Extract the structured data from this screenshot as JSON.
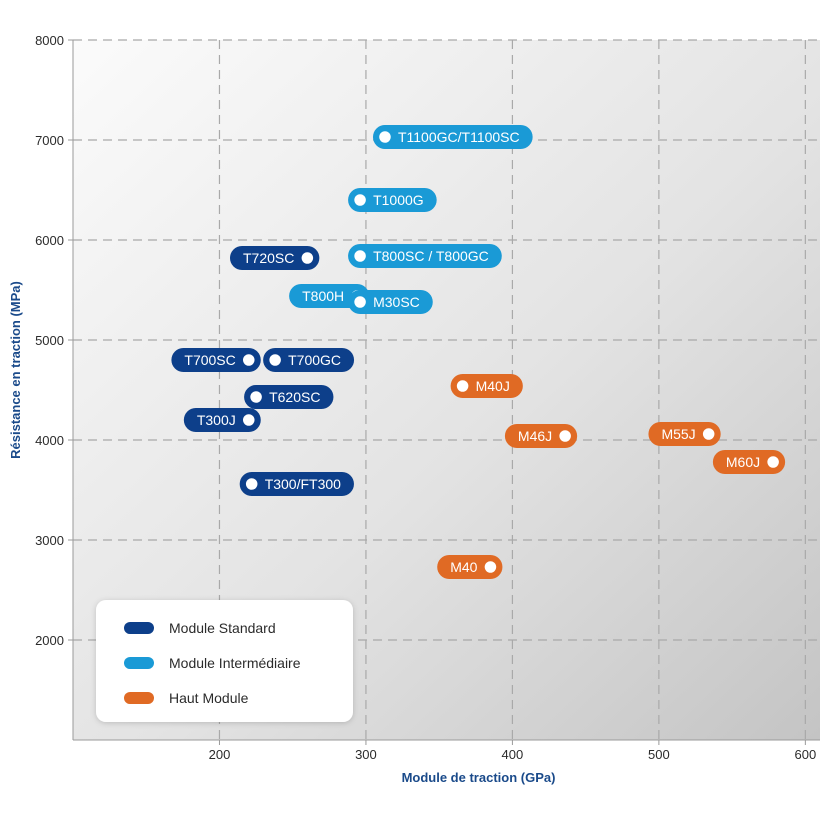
{
  "chart_data": {
    "type": "scatter",
    "xlabel": "Module de traction (GPa)",
    "ylabel": "Résistance en traction (MPa)",
    "xlim": [
      100,
      610
    ],
    "ylim": [
      1000,
      8000
    ],
    "xticks": [
      200,
      300,
      400,
      500,
      600
    ],
    "yticks": [
      2000,
      3000,
      4000,
      5000,
      6000,
      7000,
      8000
    ],
    "grid": true,
    "legend_position": "bottom-left",
    "categories": [
      {
        "key": "standard",
        "name": "Module Standard",
        "color": "#0d3f8a"
      },
      {
        "key": "intermediate",
        "name": "Module Intermédiaire",
        "color": "#1a9ad6"
      },
      {
        "key": "high",
        "name": "Haut Module",
        "color": "#e06a24"
      }
    ],
    "points": [
      {
        "label": "T1100GC/T1100SC",
        "x": 313,
        "y": 7030,
        "category": "intermediate",
        "side": "right"
      },
      {
        "label": "T1000G",
        "x": 296,
        "y": 6400,
        "category": "intermediate",
        "side": "right"
      },
      {
        "label": "T800SC / T800GC",
        "x": 296,
        "y": 5840,
        "category": "intermediate",
        "side": "right"
      },
      {
        "label": "T800H",
        "x": 294,
        "y": 5440,
        "category": "intermediate",
        "side": "left"
      },
      {
        "label": "M30SC",
        "x": 296,
        "y": 5380,
        "category": "intermediate",
        "side": "right"
      },
      {
        "label": "T720SC",
        "x": 260,
        "y": 5820,
        "category": "standard",
        "side": "left"
      },
      {
        "label": "T700SC",
        "x": 220,
        "y": 4800,
        "category": "standard",
        "side": "left"
      },
      {
        "label": "T700GC",
        "x": 238,
        "y": 4800,
        "category": "standard",
        "side": "right"
      },
      {
        "label": "T620SC",
        "x": 225,
        "y": 4430,
        "category": "standard",
        "side": "right"
      },
      {
        "label": "T300J",
        "x": 220,
        "y": 4200,
        "category": "standard",
        "side": "left"
      },
      {
        "label": "T300/FT300",
        "x": 222,
        "y": 3560,
        "category": "standard",
        "side": "right"
      },
      {
        "label": "M40J",
        "x": 366,
        "y": 4540,
        "category": "high",
        "side": "right"
      },
      {
        "label": "M46J",
        "x": 436,
        "y": 4040,
        "category": "high",
        "side": "left"
      },
      {
        "label": "M55J",
        "x": 534,
        "y": 4060,
        "category": "high",
        "side": "left"
      },
      {
        "label": "M60J",
        "x": 578,
        "y": 3780,
        "category": "high",
        "side": "left"
      },
      {
        "label": "M40",
        "x": 385,
        "y": 2730,
        "category": "high",
        "side": "left"
      }
    ]
  }
}
